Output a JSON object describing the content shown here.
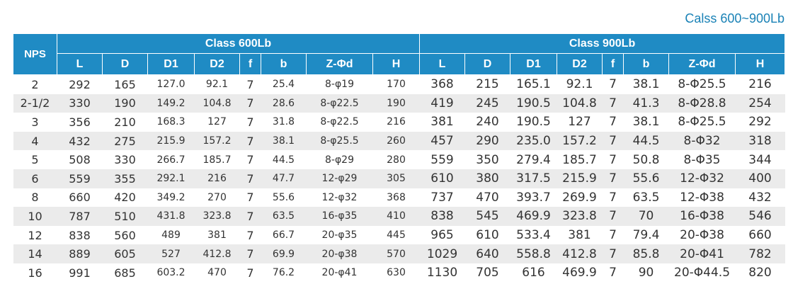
{
  "caption": "Calss 600~900Lb",
  "header": {
    "nps": "NPS",
    "groups": [
      "Class 600Lb",
      "Class 900Lb"
    ],
    "columns": [
      "L",
      "D",
      "D1",
      "D2",
      "f",
      "b",
      "Z-Φd",
      "H"
    ]
  },
  "rows": [
    [
      "2",
      "292",
      "165",
      "127.0",
      "92.1",
      "7",
      "25.4",
      "8-φ19",
      "170",
      "368",
      "215",
      "165.1",
      "92.1",
      "7",
      "38.1",
      "8-Φ25.5",
      "216"
    ],
    [
      "2-1/2",
      "330",
      "190",
      "149.2",
      "104.8",
      "7",
      "28.6",
      "8-φ22.5",
      "190",
      "419",
      "245",
      "190.5",
      "104.8",
      "7",
      "41.3",
      "8-Φ28.8",
      "254"
    ],
    [
      "3",
      "356",
      "210",
      "168.3",
      "127",
      "7",
      "31.8",
      "8-φ22.5",
      "216",
      "381",
      "240",
      "190.5",
      "127",
      "7",
      "38.1",
      "8-Φ25.5",
      "292"
    ],
    [
      "4",
      "432",
      "275",
      "215.9",
      "157.2",
      "7",
      "38.1",
      "8-φ25.5",
      "260",
      "457",
      "290",
      "235.0",
      "157.2",
      "7",
      "44.5",
      "8-Φ32",
      "318"
    ],
    [
      "5",
      "508",
      "330",
      "266.7",
      "185.7",
      "7",
      "44.5",
      "8-φ29",
      "280",
      "559",
      "350",
      "279.4",
      "185.7",
      "7",
      "50.8",
      "8-Φ35",
      "344"
    ],
    [
      "6",
      "559",
      "355",
      "292.1",
      "216",
      "7",
      "47.7",
      "12-φ29",
      "305",
      "610",
      "380",
      "317.5",
      "215.9",
      "7",
      "55.6",
      "12-Φ32",
      "400"
    ],
    [
      "8",
      "660",
      "420",
      "349.2",
      "270",
      "7",
      "55.6",
      "12-φ32",
      "368",
      "737",
      "470",
      "393.7",
      "269.9",
      "7",
      "63.5",
      "12-Φ38",
      "432"
    ],
    [
      "10",
      "787",
      "510",
      "431.8",
      "323.8",
      "7",
      "63.5",
      "16-φ35",
      "410",
      "838",
      "545",
      "469.9",
      "323.8",
      "7",
      "70",
      "16-Φ38",
      "546"
    ],
    [
      "12",
      "838",
      "560",
      "489",
      "381",
      "7",
      "66.7",
      "20-φ35",
      "445",
      "965",
      "610",
      "533.4",
      "381",
      "7",
      "79.4",
      "20-Φ38",
      "660"
    ],
    [
      "14",
      "889",
      "605",
      "527",
      "412.8",
      "7",
      "69.9",
      "20-φ38",
      "570",
      "1029",
      "640",
      "558.8",
      "412.8",
      "7",
      "85.8",
      "20-Φ41",
      "782"
    ],
    [
      "16",
      "991",
      "685",
      "603.2",
      "470",
      "7",
      "76.2",
      "20-φ41",
      "630",
      "1130",
      "705",
      "616",
      "469.9",
      "7",
      "90",
      "20-Φ44.5",
      "820"
    ]
  ]
}
